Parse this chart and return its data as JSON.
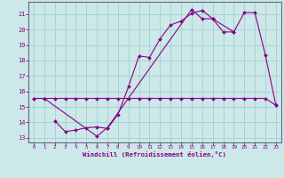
{
  "xlabel": "Windchill (Refroidissement éolien,°C)",
  "bg_color": "#cce8e8",
  "grid_color": "#99cccc",
  "line_color": "#880088",
  "xlim": [
    -0.5,
    23.5
  ],
  "ylim": [
    12.7,
    21.8
  ],
  "xticks": [
    0,
    1,
    2,
    3,
    4,
    5,
    6,
    7,
    8,
    9,
    10,
    11,
    12,
    13,
    14,
    15,
    16,
    17,
    18,
    19,
    20,
    21,
    22,
    23
  ],
  "yticks": [
    13,
    14,
    15,
    16,
    17,
    18,
    19,
    20,
    21
  ],
  "line1_x": [
    0,
    1,
    2,
    3,
    4,
    5,
    6,
    7,
    8,
    9,
    10,
    11,
    12,
    13,
    14,
    15,
    16,
    17,
    18,
    19,
    20,
    21,
    22,
    23
  ],
  "line1_y": [
    15.55,
    15.55,
    15.55,
    15.55,
    15.55,
    15.55,
    15.55,
    15.55,
    15.55,
    15.55,
    15.55,
    15.55,
    15.55,
    15.55,
    15.55,
    15.55,
    15.55,
    15.55,
    15.55,
    15.55,
    15.55,
    15.55,
    15.55,
    15.1
  ],
  "line2_x": [
    2,
    3,
    4,
    5,
    6,
    7,
    8,
    9,
    10,
    11,
    12,
    13,
    14,
    15,
    16,
    17,
    18,
    19
  ],
  "line2_y": [
    14.1,
    13.4,
    13.5,
    13.65,
    13.7,
    13.6,
    14.5,
    16.3,
    18.3,
    18.2,
    19.4,
    20.3,
    20.55,
    21.05,
    21.25,
    20.7,
    19.85,
    19.85
  ],
  "line3_x": [
    0,
    1,
    6,
    7,
    15,
    16,
    17,
    19,
    20,
    21,
    22,
    23
  ],
  "line3_y": [
    15.55,
    15.55,
    13.1,
    13.65,
    21.3,
    20.7,
    20.7,
    19.85,
    21.1,
    21.1,
    18.35,
    15.1
  ]
}
